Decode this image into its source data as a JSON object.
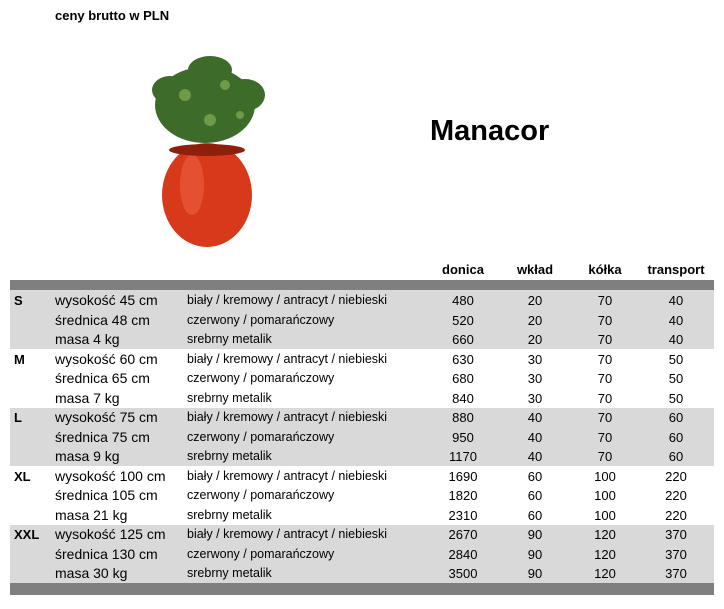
{
  "note": "ceny brutto w PLN",
  "title": "Manacor",
  "header": [
    "donica",
    "wkład",
    "kółka",
    "transport"
  ],
  "groups": [
    {
      "size": "S",
      "rows": [
        [
          "wysokość 45 cm",
          "biały / kremowy / antracyt / niebieski",
          480,
          20,
          70,
          40
        ],
        [
          "średnica 48 cm",
          "czerwony / pomarańczowy",
          520,
          20,
          70,
          40
        ],
        [
          "masa 4 kg",
          "srebrny metalik",
          660,
          20,
          70,
          40
        ]
      ]
    },
    {
      "size": "M",
      "rows": [
        [
          "wysokość 60 cm",
          "biały / kremowy / antracyt / niebieski",
          630,
          30,
          70,
          50
        ],
        [
          "średnica 65 cm",
          "czerwony / pomarańczowy",
          680,
          30,
          70,
          50
        ],
        [
          "masa 7 kg",
          "srebrny metalik",
          840,
          30,
          70,
          50
        ]
      ]
    },
    {
      "size": "L",
      "rows": [
        [
          "wysokość 75 cm",
          "biały / kremowy / antracyt / niebieski",
          880,
          40,
          70,
          60
        ],
        [
          "średnica 75 cm",
          "czerwony / pomarańczowy",
          950,
          40,
          70,
          60
        ],
        [
          "masa 9 kg",
          "srebrny metalik",
          1170,
          40,
          70,
          60
        ]
      ]
    },
    {
      "size": "XL",
      "rows": [
        [
          "wysokość 100 cm",
          "biały / kremowy / antracyt / niebieski",
          1690,
          60,
          100,
          220
        ],
        [
          "średnica 105 cm",
          "czerwony / pomarańczowy",
          1820,
          60,
          100,
          220
        ],
        [
          "masa 21 kg",
          "srebrny metalik",
          2310,
          60,
          100,
          220
        ]
      ]
    },
    {
      "size": "XXL",
      "rows": [
        [
          "wysokość 125 cm",
          "biały / kremowy / antracyt / niebieski",
          2670,
          90,
          120,
          370
        ],
        [
          "średnica 130 cm",
          "czerwony / pomarańczowy",
          2840,
          90,
          120,
          370
        ],
        [
          "masa 30 kg",
          "srebrny metalik",
          3500,
          90,
          120,
          370
        ]
      ]
    }
  ]
}
